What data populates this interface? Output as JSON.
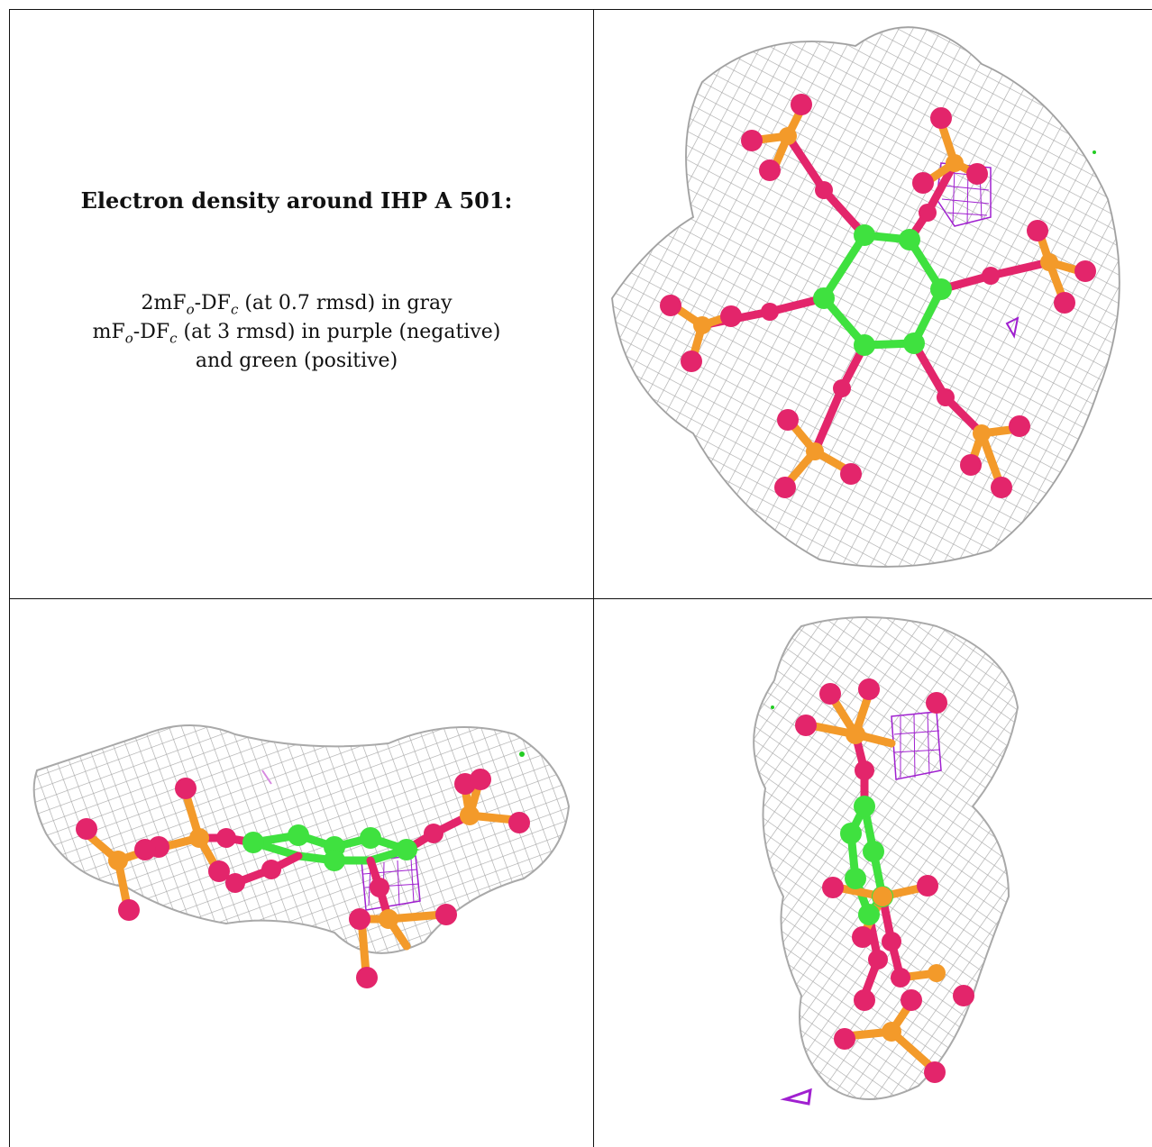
{
  "caption": {
    "title": "Electron density around IHP A 501:",
    "line1_prefix": "2mF",
    "line1_sub1": "o",
    "line1_mid": "-DF",
    "line1_sub2": "c",
    "line1_suffix": " (at 0.7 rmsd) in gray",
    "line2_prefix": "mF",
    "line2_sub1": "o",
    "line2_mid": "-DF",
    "line2_sub2": "c",
    "line2_suffix": " (at 3 rmsd) in purple (negative)",
    "line3": "and green (positive)"
  },
  "colors": {
    "mesh": "#a9a9a9",
    "carbon": "#3fe13f",
    "phosphorus": "#f39a2a",
    "oxygen": "#e3256b",
    "negative": "#a020d0",
    "positive": "#22cc22"
  },
  "views": [
    "top-view",
    "side-view",
    "edge-view"
  ]
}
